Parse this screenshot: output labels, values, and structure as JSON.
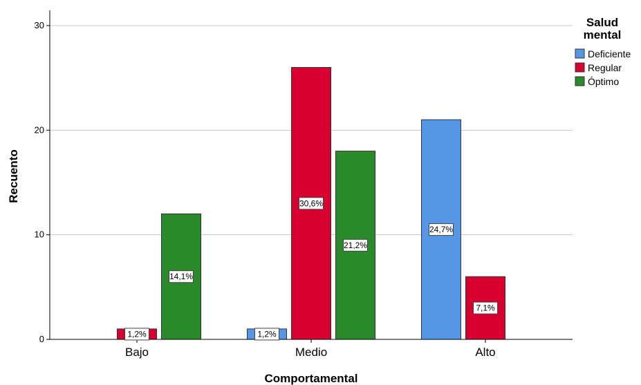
{
  "chart_data": {
    "type": "bar",
    "categories": [
      "Bajo",
      "Medio",
      "Alto"
    ],
    "series": [
      {
        "name": "Deficiente",
        "color": "#5596e6",
        "values": [
          0,
          1,
          21
        ],
        "labels": [
          "",
          "1,2%",
          "24,7%"
        ]
      },
      {
        "name": "Regular",
        "color": "#d8002f",
        "values": [
          1,
          26,
          6
        ],
        "labels": [
          "1,2%",
          "30,6%",
          "7,1%"
        ]
      },
      {
        "name": "Óptimo",
        "color": "#2a8a2a",
        "values": [
          12,
          18,
          0
        ],
        "labels": [
          "14,1%",
          "21,2%",
          ""
        ]
      }
    ],
    "xlabel": "Comportamental",
    "ylabel": "Recuento",
    "ylim": [
      0,
      30
    ],
    "yticks": [
      0,
      10,
      20,
      30
    ],
    "grid": true,
    "legend": {
      "title_lines": [
        "Salud",
        "mental"
      ],
      "placement": "top-right"
    }
  }
}
